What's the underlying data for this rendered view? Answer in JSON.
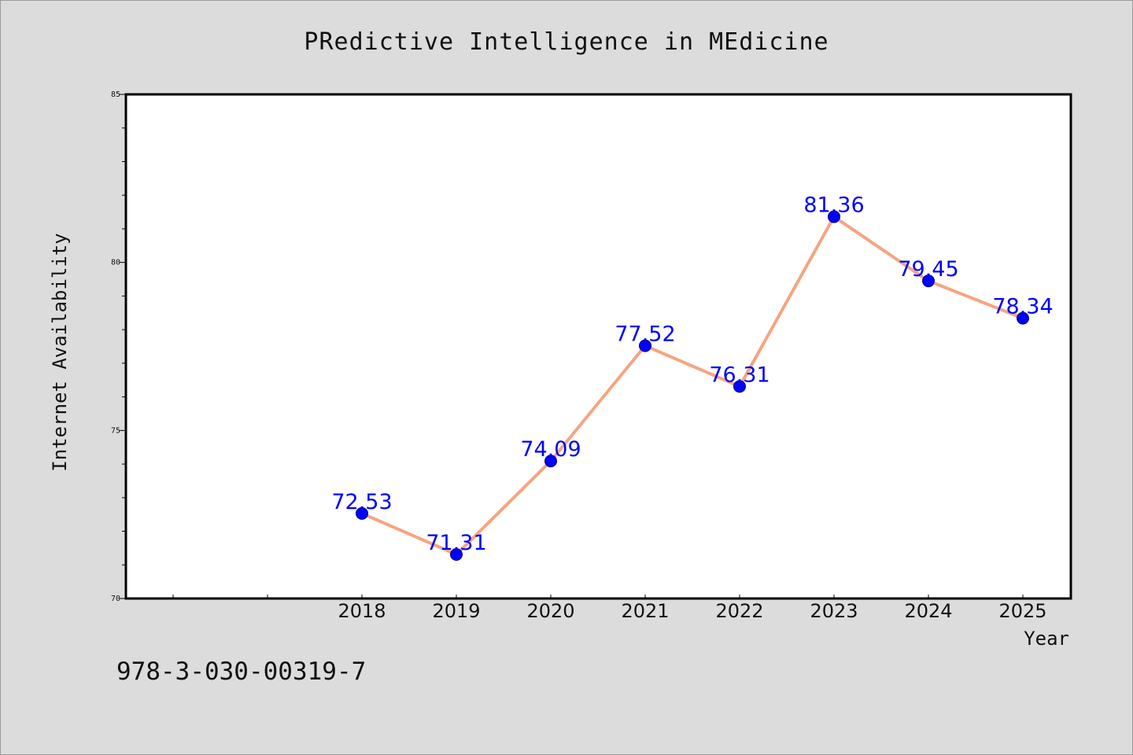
{
  "chart_data": {
    "type": "line",
    "title": "PRedictive Intelligence in MEdicine",
    "xlabel": "Year",
    "ylabel": "Internet Availability",
    "categories": [
      "2018",
      "2019",
      "2020",
      "2021",
      "2022",
      "2023",
      "2024",
      "2025"
    ],
    "values": [
      72.53,
      71.31,
      74.09,
      77.52,
      76.31,
      81.36,
      79.45,
      78.34
    ],
    "data_labels": [
      "72.53",
      "71.31",
      "74.09",
      "77.52",
      "76.31",
      "81.36",
      "79.45",
      "78.34"
    ],
    "ylim": [
      70,
      85
    ],
    "yticks": [
      "70",
      "75",
      "80",
      "85"
    ],
    "grid": false,
    "line_color": "#f4a582",
    "marker_color": "#0000ff",
    "label_color": "#0000ff"
  },
  "footer": {
    "isbn": "978-3-030-00319-7"
  }
}
